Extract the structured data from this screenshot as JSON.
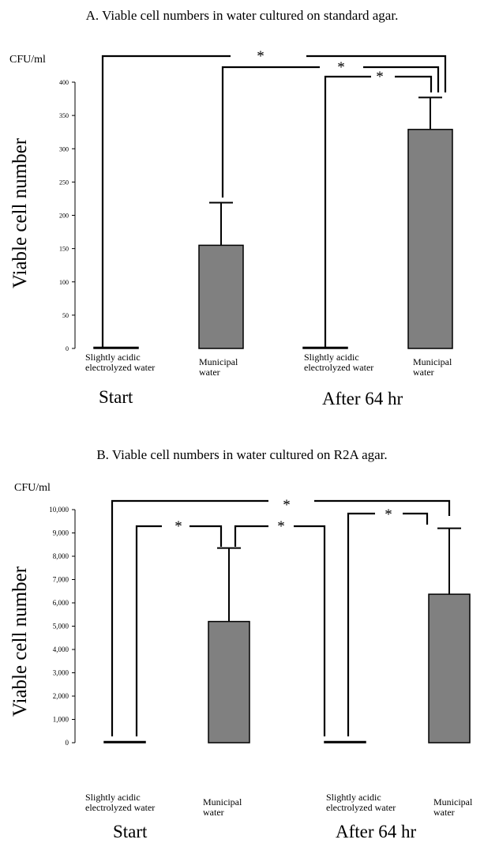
{
  "chart_data": [
    {
      "type": "bar",
      "title": "A. Viable cell numbers in water cultured on standard agar.",
      "unit_label": "CFU/ml",
      "ylabel": "Viable cell number",
      "ylim": [
        0,
        400
      ],
      "yticks": [
        "0",
        "50",
        "100",
        "150",
        "200",
        "250",
        "300",
        "350",
        "400"
      ],
      "tick_values": [
        0,
        50,
        100,
        150,
        200,
        250,
        300,
        350,
        400
      ],
      "categories": [
        "Slightly acidic\nelectrolyzed water",
        "Municipal\nwater",
        "Slightly acidic\nelectrolyzed water",
        "Municipal\nwater"
      ],
      "groups": [
        "Start",
        "After 64 hr"
      ],
      "values": [
        1,
        155,
        1,
        329
      ],
      "error": [
        0,
        64,
        0,
        48
      ],
      "bar_color": "#808080",
      "significance_label": "*",
      "significance": [
        [
          0,
          3
        ],
        [
          1,
          3
        ],
        [
          2,
          3
        ]
      ]
    },
    {
      "type": "bar",
      "title": "B. Viable cell numbers in water cultured on R2A agar.",
      "unit_label": "CFU/ml",
      "ylabel": "Viable cell number",
      "ylim": [
        0,
        10000
      ],
      "yticks": [
        "0",
        "1,000",
        "2,000",
        "3,000",
        "4,000",
        "5,000",
        "6,000",
        "7,000",
        "8,000",
        "9,000",
        "10,000"
      ],
      "tick_values": [
        0,
        1000,
        2000,
        3000,
        4000,
        5000,
        6000,
        7000,
        8000,
        9000,
        10000
      ],
      "categories": [
        "Slightly acidic\nelectrolyzed water",
        "Municipal\nwater",
        "Slightly acidic\nelectrolyzed water",
        "Municipal\nwater"
      ],
      "groups": [
        "Start",
        "After 64 hr"
      ],
      "values": [
        20,
        5200,
        20,
        6370
      ],
      "error": [
        0,
        3150,
        0,
        2830
      ],
      "bar_color": "#808080",
      "significance_label": "*",
      "significance": [
        [
          0,
          3
        ],
        [
          0,
          1
        ],
        [
          1,
          2
        ],
        [
          2,
          3
        ]
      ]
    }
  ]
}
